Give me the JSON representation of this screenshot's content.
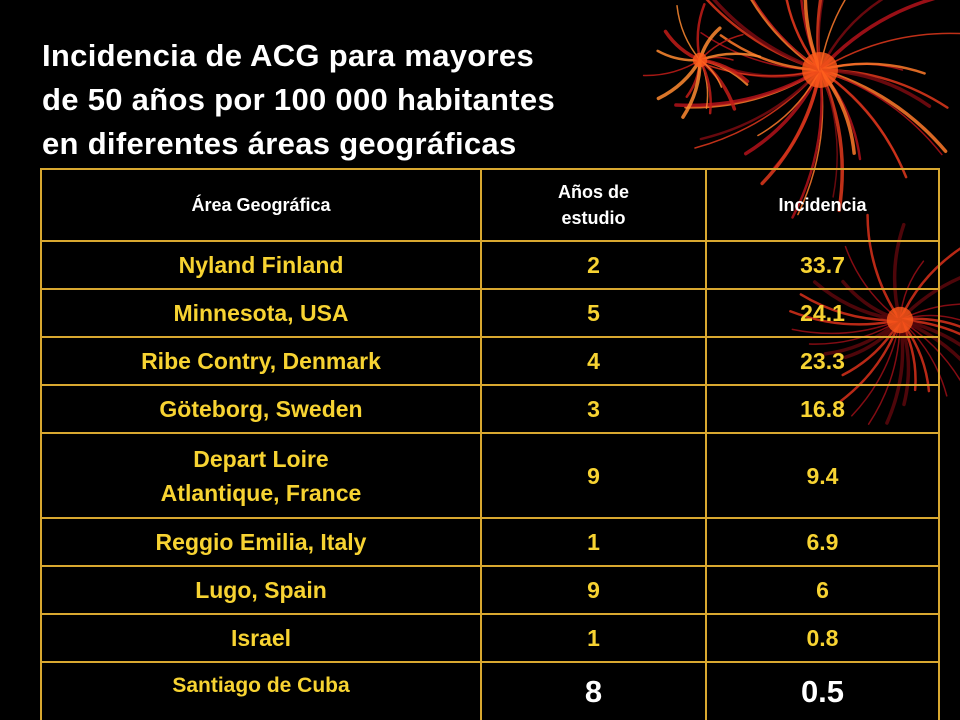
{
  "title": "Incidencia de ACG para mayores\nde 50 años por 100 000 habitantes\nen diferentes áreas geográficas",
  "table": {
    "header": [
      "Área Geográfica",
      "Años de\nestudio",
      "Incidencia"
    ],
    "rows": [
      [
        "Nyland Finland",
        2,
        33.7
      ],
      [
        "Minnesota, USA",
        5,
        24.1
      ],
      [
        "Ribe Contry, Denmark",
        4,
        23.3
      ],
      [
        "Göteborg, Sweden",
        3,
        16.8
      ],
      [
        "Depart Loire\nAtlantique, France",
        9,
        9.4
      ],
      [
        "Reggio Emilia, Italy",
        1,
        6.9
      ],
      [
        "Lugo, Spain",
        9,
        6
      ],
      [
        "Israel",
        1,
        0.8
      ],
      [
        "Santiago de Cuba",
        8,
        0.5
      ]
    ]
  }
}
